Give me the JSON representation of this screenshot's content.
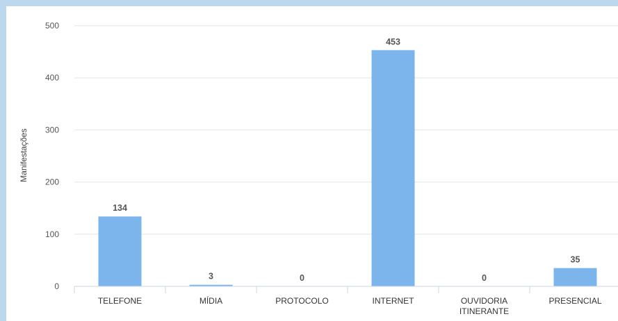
{
  "chart_data": {
    "type": "bar",
    "ylabel": "Manifestações",
    "ylim": [
      0,
      500
    ],
    "yticks": [
      0,
      100,
      200,
      300,
      400,
      500
    ],
    "categories": [
      [
        "TELEFONE"
      ],
      [
        "MÍDIA"
      ],
      [
        "PROTOCOLO"
      ],
      [
        "INTERNET"
      ],
      [
        "OUVIDORIA",
        "ITINERANTE"
      ],
      [
        "PRESENCIAL"
      ]
    ],
    "values": [
      134,
      3,
      0,
      453,
      0,
      35
    ],
    "colors": {
      "bar": "#7cb5ec",
      "grid": "#e6e6e6",
      "axis": "#ccd6eb",
      "background": "#bcd7ee"
    }
  }
}
